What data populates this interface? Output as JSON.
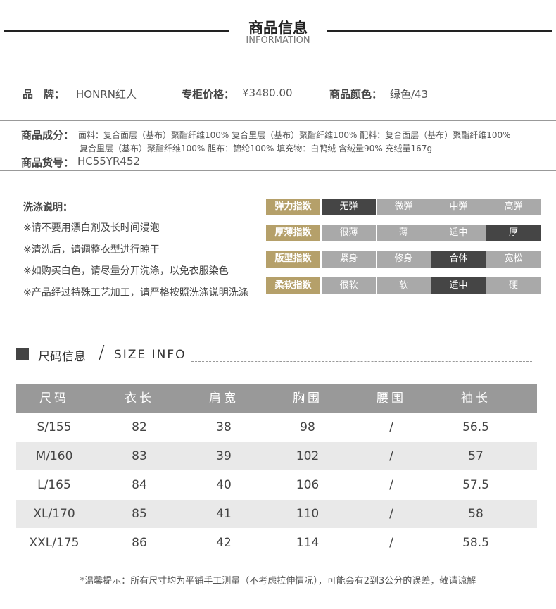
{
  "header": {
    "title": "商品信息",
    "subtitle": "INFORMATION"
  },
  "info": {
    "brand": {
      "label": "品　牌：",
      "value": "HONRN红人"
    },
    "price": {
      "label": "专柜价格：",
      "value": "¥3480.00"
    },
    "color": {
      "label": "商品颜色：",
      "value": "绿色/43"
    },
    "composition": {
      "label": "商品成分：",
      "lines": [
        "面料：复合面层（基布）聚酯纤维100% 复合里层（基布）聚酯纤维100% 配料：复合面层（基布）聚酯纤维100%",
        "复合里层（基布）聚酯纤维100% 胆布：锦纶100% 填充物：白鸭绒 含绒量90% 充绒量167g"
      ]
    },
    "sku": {
      "label": "商品货号：",
      "value": "HC55YR452"
    }
  },
  "wash": {
    "title": "洗涤说明：",
    "items": [
      "※请不要用漂白剂及长时间浸泡",
      "※清洗后，请调整衣型进行晾干",
      "※如购买白色，请尽量分开洗涤，以免衣服染色",
      "※产品经过特殊工艺加工，请严格按照洗涤说明洗涤"
    ]
  },
  "indices": [
    {
      "label": "弹力指数",
      "options": [
        "无弹",
        "微弹",
        "中弹",
        "高弹"
      ],
      "selected": 0
    },
    {
      "label": "厚薄指数",
      "options": [
        "很薄",
        "薄",
        "适中",
        "厚"
      ],
      "selected": 3
    },
    {
      "label": "版型指数",
      "options": [
        "紧身",
        "修身",
        "合体",
        "宽松"
      ],
      "selected": 2
    },
    {
      "label": "柔软指数",
      "options": [
        "很软",
        "软",
        "适中",
        "硬"
      ],
      "selected": 2
    }
  ],
  "size": {
    "title": "尺码信息",
    "slash": "/",
    "title_en": "SIZE INFO",
    "table": {
      "columns": [
        "尺码",
        "衣长",
        "肩宽",
        "胸围",
        "腰围",
        "袖长"
      ],
      "rows": [
        [
          "S/155",
          82,
          38,
          98,
          "/",
          56.5
        ],
        [
          "M/160",
          83,
          39,
          102,
          "/",
          57
        ],
        [
          "L/165",
          84,
          40,
          106,
          "/",
          57.5
        ],
        [
          "XL/170",
          85,
          41,
          110,
          "/",
          58
        ],
        [
          "XXL/175",
          86,
          42,
          114,
          "/",
          58.5
        ]
      ]
    },
    "note": "*温馨提示：所有尺寸均为平铺手工测量（不考虑拉伸情况），可能会有2到3公分的误差，敬请谅解"
  }
}
